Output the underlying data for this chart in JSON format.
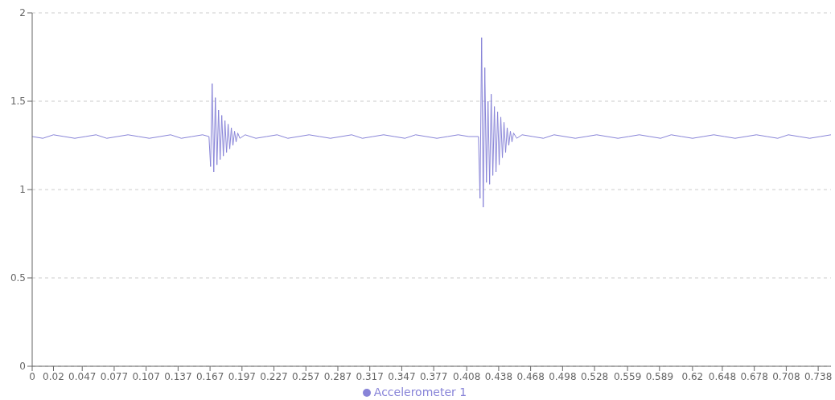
{
  "chart_data": {
    "type": "line",
    "marker": "none",
    "grid": "y",
    "legend": "bottom",
    "xlim": [
      0,
      0.75
    ],
    "ylim": [
      0,
      2
    ],
    "yticks": [
      0,
      0.5,
      1,
      1.5,
      2
    ],
    "xticks": [
      0,
      0.02,
      0.047,
      0.077,
      0.107,
      0.137,
      0.167,
      0.197,
      0.227,
      0.257,
      0.287,
      0.317,
      0.347,
      0.377,
      0.408,
      0.438,
      0.468,
      0.498,
      0.528,
      0.559,
      0.589,
      0.62,
      0.648,
      0.678,
      0.708,
      0.738
    ],
    "series": [
      {
        "name": "Accelerometer 1",
        "color": "#8884d8",
        "x": [
          0,
          0.01,
          0.02,
          0.03,
          0.04,
          0.05,
          0.06,
          0.07,
          0.08,
          0.09,
          0.1,
          0.11,
          0.12,
          0.13,
          0.14,
          0.15,
          0.16,
          0.166,
          0.1675,
          0.169,
          0.1705,
          0.172,
          0.1735,
          0.175,
          0.1765,
          0.178,
          0.1795,
          0.181,
          0.1825,
          0.184,
          0.1855,
          0.187,
          0.1885,
          0.19,
          0.1915,
          0.193,
          0.195,
          0.2,
          0.21,
          0.22,
          0.23,
          0.24,
          0.25,
          0.26,
          0.27,
          0.28,
          0.29,
          0.3,
          0.31,
          0.32,
          0.33,
          0.34,
          0.35,
          0.36,
          0.37,
          0.38,
          0.39,
          0.4,
          0.41,
          0.419,
          0.4205,
          0.422,
          0.4235,
          0.425,
          0.4265,
          0.428,
          0.4295,
          0.431,
          0.4325,
          0.434,
          0.4355,
          0.437,
          0.4385,
          0.44,
          0.4415,
          0.443,
          0.4445,
          0.446,
          0.4475,
          0.449,
          0.4505,
          0.452,
          0.455,
          0.46,
          0.47,
          0.48,
          0.49,
          0.5,
          0.51,
          0.52,
          0.53,
          0.54,
          0.55,
          0.56,
          0.57,
          0.58,
          0.59,
          0.6,
          0.61,
          0.62,
          0.63,
          0.64,
          0.65,
          0.66,
          0.67,
          0.68,
          0.69,
          0.7,
          0.71,
          0.72,
          0.73,
          0.74,
          0.75
        ],
        "values": [
          1.3,
          1.29,
          1.31,
          1.3,
          1.29,
          1.3,
          1.31,
          1.29,
          1.3,
          1.31,
          1.3,
          1.29,
          1.3,
          1.31,
          1.29,
          1.3,
          1.31,
          1.3,
          1.13,
          1.6,
          1.1,
          1.52,
          1.14,
          1.45,
          1.17,
          1.42,
          1.19,
          1.39,
          1.21,
          1.37,
          1.23,
          1.35,
          1.25,
          1.33,
          1.27,
          1.32,
          1.29,
          1.31,
          1.29,
          1.3,
          1.31,
          1.29,
          1.3,
          1.31,
          1.3,
          1.29,
          1.3,
          1.31,
          1.29,
          1.3,
          1.31,
          1.3,
          1.29,
          1.31,
          1.3,
          1.29,
          1.3,
          1.31,
          1.3,
          1.3,
          0.95,
          1.86,
          0.9,
          1.69,
          1.04,
          1.5,
          1.03,
          1.54,
          1.08,
          1.47,
          1.1,
          1.44,
          1.14,
          1.41,
          1.18,
          1.38,
          1.21,
          1.35,
          1.25,
          1.33,
          1.27,
          1.32,
          1.29,
          1.31,
          1.3,
          1.29,
          1.31,
          1.3,
          1.29,
          1.3,
          1.31,
          1.3,
          1.29,
          1.3,
          1.31,
          1.3,
          1.29,
          1.31,
          1.3,
          1.29,
          1.3,
          1.31,
          1.3,
          1.29,
          1.3,
          1.31,
          1.3,
          1.29,
          1.31,
          1.3,
          1.29,
          1.3,
          1.31
        ]
      }
    ]
  }
}
